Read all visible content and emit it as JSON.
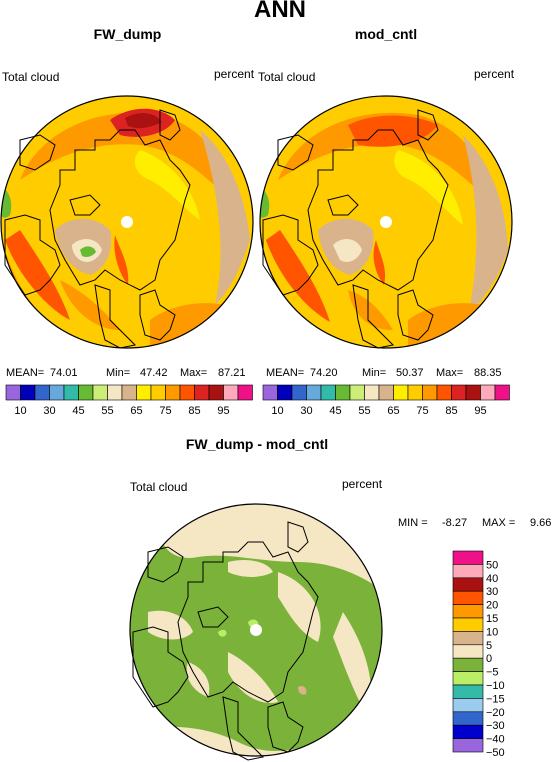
{
  "figure": {
    "title": "ANN"
  },
  "panels": [
    {
      "title": "FW_dump",
      "left_label": "Total cloud",
      "right_label": "percent",
      "stats": {
        "mean_label": "MEAN=",
        "mean": "74.01",
        "min_label": "Min=",
        "min": "47.42",
        "max_label": "Max=",
        "max": "87.21"
      }
    },
    {
      "title": "mod_cntl",
      "left_label": "Total cloud",
      "right_label": "percent",
      "stats": {
        "mean_label": "MEAN=",
        "mean": "74.20",
        "min_label": "Min=",
        "min": "50.37",
        "max_label": "Max=",
        "max": "88.35"
      }
    },
    {
      "title": "FW_dump - mod_cntl",
      "left_label": "Total cloud",
      "right_label": "percent",
      "stats": {
        "min_label": "MIN =",
        "min": "-8.27",
        "max_label": "MAX =",
        "max": "9.66"
      }
    }
  ],
  "colorbars": {
    "field": {
      "colors": [
        "#9966dd",
        "#0000bb",
        "#3366cc",
        "#66aadd",
        "#33bbaa",
        "#66bb33",
        "#ccee77",
        "#f5e6c4",
        "#d9b38c",
        "#ffee00",
        "#ffcc00",
        "#ff9900",
        "#ff5500",
        "#dd2222",
        "#aa1111",
        "#ffaabb",
        "#ee1188"
      ],
      "labels": [
        "10",
        "30",
        "45",
        "55",
        "65",
        "75",
        "85",
        "95"
      ]
    },
    "diff": {
      "colors": [
        "#ee1188",
        "#ffaabb",
        "#aa1111",
        "#ff5500",
        "#ff9900",
        "#ffcc00",
        "#d9b38c",
        "#f5e6c4",
        "#7bb33a",
        "#bbee66",
        "#33bbaa",
        "#99ccee",
        "#3366cc",
        "#0000cc",
        "#9966dd"
      ],
      "labels": [
        "50",
        "40",
        "30",
        "20",
        "15",
        "10",
        "5",
        "0",
        "−5",
        "−10",
        "−15",
        "−20",
        "−30",
        "−40",
        "−50"
      ]
    }
  },
  "chart_data": [
    {
      "type": "heatmap",
      "projection": "polar stereographic (north pole)",
      "title": "FW_dump",
      "variable": "Total cloud",
      "units": "percent",
      "mean": 74.01,
      "min": 47.42,
      "max": 87.21,
      "levels": [
        10,
        15,
        20,
        25,
        30,
        35,
        40,
        45,
        50,
        55,
        60,
        65,
        70,
        75,
        80,
        85,
        90,
        95
      ]
    },
    {
      "type": "heatmap",
      "projection": "polar stereographic (north pole)",
      "title": "mod_cntl",
      "variable": "Total cloud",
      "units": "percent",
      "mean": 74.2,
      "min": 50.37,
      "max": 88.35,
      "levels": [
        10,
        15,
        20,
        25,
        30,
        35,
        40,
        45,
        50,
        55,
        60,
        65,
        70,
        75,
        80,
        85,
        90,
        95
      ]
    },
    {
      "type": "heatmap",
      "projection": "polar stereographic (north pole)",
      "title": "FW_dump - mod_cntl",
      "variable": "Total cloud",
      "units": "percent",
      "min": -8.27,
      "max": 9.66,
      "levels": [
        -50,
        -40,
        -30,
        -20,
        -15,
        -10,
        -5,
        0,
        5,
        10,
        15,
        20,
        30,
        40,
        50
      ]
    }
  ]
}
